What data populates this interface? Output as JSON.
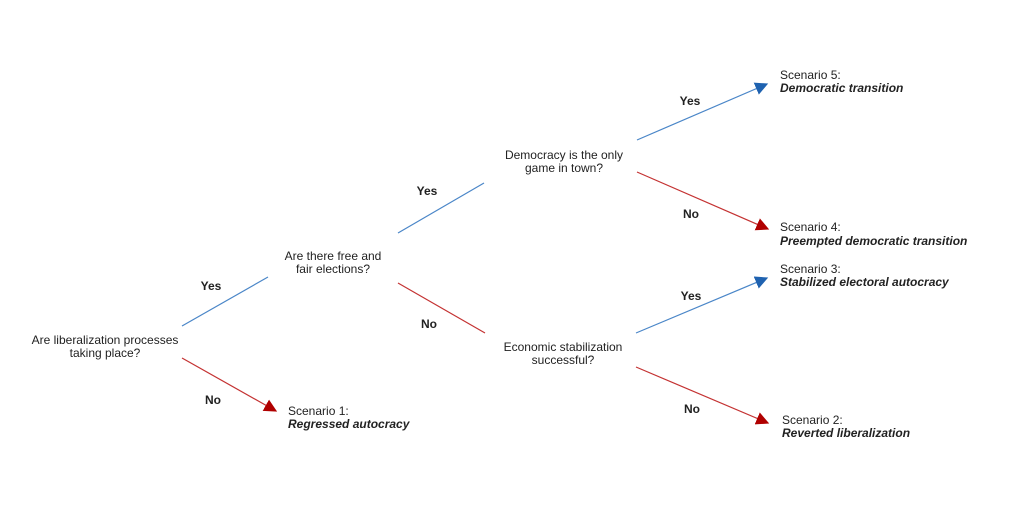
{
  "colors": {
    "yes_line": "#4a86c8",
    "yes_arrow": "#1f62b0",
    "no_line": "#c43232",
    "no_arrow": "#b00000"
  },
  "questions": {
    "q1": [
      "Are liberalization processes",
      "taking place?"
    ],
    "q2": [
      "Are there free and",
      "fair elections?"
    ],
    "q3": [
      "Democracy is the only",
      "game in town?"
    ],
    "q4": [
      "Economic stabilization",
      "successful?"
    ]
  },
  "edges": {
    "yes": "Yes",
    "no": "No"
  },
  "scenarios": {
    "s1": {
      "label": "Scenario 1:",
      "title": "Regressed autocracy"
    },
    "s2": {
      "label": "Scenario 2:",
      "title": "Reverted liberalization"
    },
    "s3": {
      "label": "Scenario 3:",
      "title": "Stabilized electoral autocracy"
    },
    "s4": {
      "label": "Scenario 4:",
      "title": "Preempted democratic transition"
    },
    "s5": {
      "label": "Scenario 5:",
      "title": "Democratic transition"
    }
  }
}
